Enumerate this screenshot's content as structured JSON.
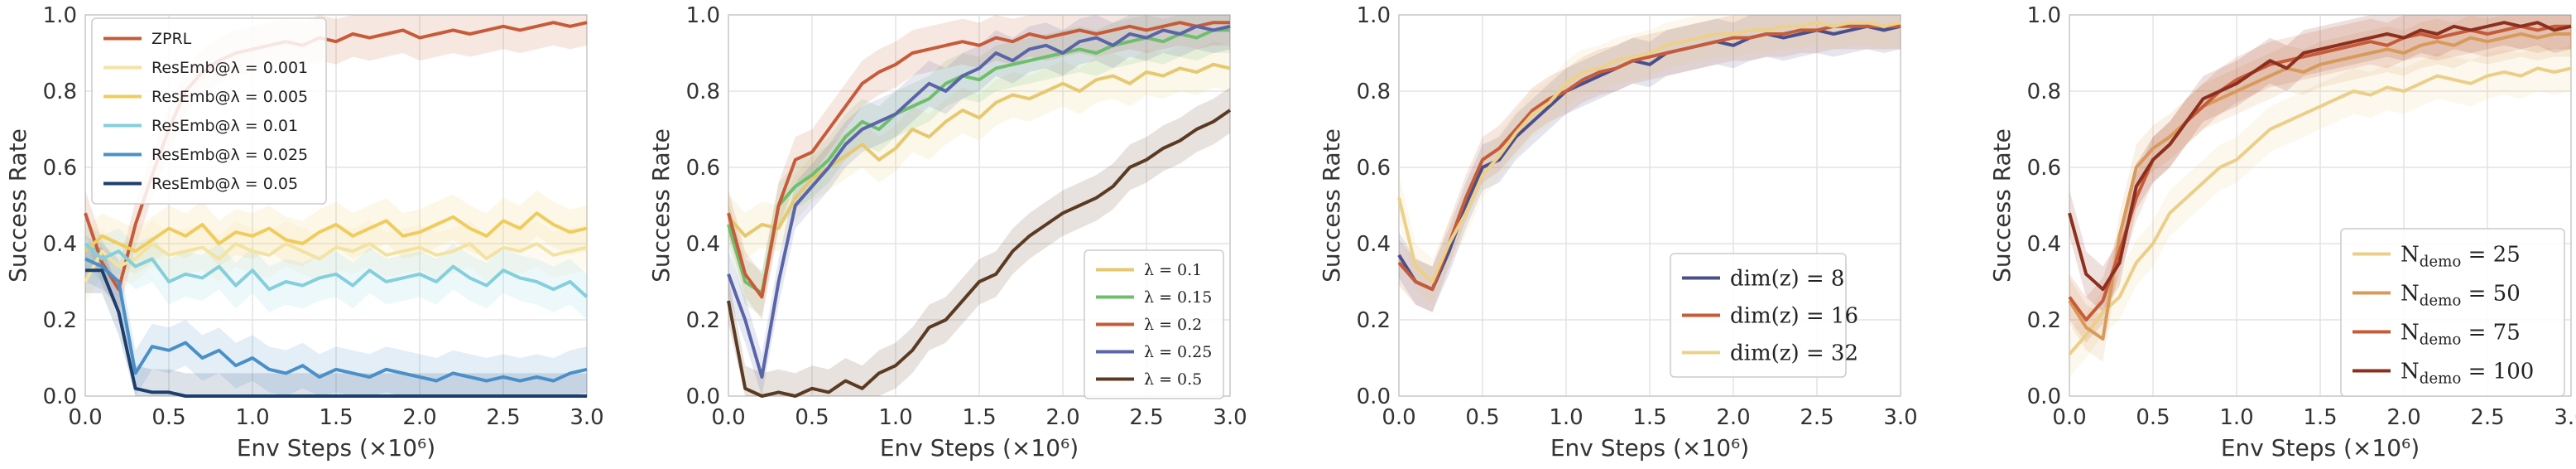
{
  "chart_data": [
    {
      "type": "line",
      "xlabel": "Env Steps (×10⁶)",
      "ylabel": "Success Rate",
      "xlim": [
        0,
        3.0
      ],
      "ylim": [
        0,
        1.0
      ],
      "xticks": [
        "0.0",
        "0.5",
        "1.0",
        "1.5",
        "2.0",
        "2.5",
        "3.0"
      ],
      "yticks": [
        "0.0",
        "0.2",
        "0.4",
        "0.6",
        "0.8",
        "1.0"
      ],
      "grid": true,
      "legend_position": "top-left",
      "x": [
        0,
        0.1,
        0.2,
        0.3,
        0.4,
        0.5,
        0.6,
        0.7,
        0.8,
        0.9,
        1.0,
        1.1,
        1.2,
        1.3,
        1.4,
        1.5,
        1.6,
        1.7,
        1.8,
        1.9,
        2.0,
        2.1,
        2.2,
        2.3,
        2.4,
        2.5,
        2.6,
        2.7,
        2.8,
        2.9,
        3.0
      ],
      "series": [
        {
          "name": "ZPRL",
          "color": "#c75b39",
          "values": [
            0.48,
            0.35,
            0.28,
            0.45,
            0.58,
            0.7,
            0.8,
            0.85,
            0.88,
            0.9,
            0.91,
            0.92,
            0.93,
            0.92,
            0.94,
            0.93,
            0.95,
            0.94,
            0.95,
            0.96,
            0.94,
            0.95,
            0.96,
            0.95,
            0.96,
            0.97,
            0.96,
            0.97,
            0.98,
            0.97,
            0.98
          ]
        },
        {
          "name": "ResEmb@λ = 0.001",
          "color": "#f3e3a3",
          "values": [
            0.3,
            0.38,
            0.34,
            0.36,
            0.4,
            0.37,
            0.38,
            0.39,
            0.36,
            0.4,
            0.38,
            0.37,
            0.4,
            0.38,
            0.36,
            0.39,
            0.38,
            0.4,
            0.37,
            0.38,
            0.39,
            0.37,
            0.38,
            0.4,
            0.36,
            0.39,
            0.38,
            0.4,
            0.37,
            0.38,
            0.39
          ]
        },
        {
          "name": "ResEmb@λ = 0.005",
          "color": "#f0cc5c",
          "values": [
            0.38,
            0.42,
            0.4,
            0.38,
            0.41,
            0.44,
            0.42,
            0.45,
            0.4,
            0.43,
            0.42,
            0.44,
            0.41,
            0.4,
            0.43,
            0.45,
            0.42,
            0.44,
            0.46,
            0.42,
            0.43,
            0.45,
            0.47,
            0.44,
            0.42,
            0.46,
            0.44,
            0.48,
            0.45,
            0.43,
            0.44
          ]
        },
        {
          "name": "ResEmb@λ = 0.01",
          "color": "#84cfdc",
          "values": [
            0.4,
            0.36,
            0.38,
            0.34,
            0.36,
            0.3,
            0.32,
            0.31,
            0.34,
            0.29,
            0.33,
            0.28,
            0.3,
            0.29,
            0.31,
            0.32,
            0.29,
            0.33,
            0.3,
            0.31,
            0.32,
            0.3,
            0.34,
            0.31,
            0.29,
            0.33,
            0.31,
            0.3,
            0.28,
            0.3,
            0.26
          ]
        },
        {
          "name": "ResEmb@λ = 0.025",
          "color": "#4a90c8",
          "values": [
            0.36,
            0.34,
            0.3,
            0.06,
            0.13,
            0.12,
            0.14,
            0.1,
            0.12,
            0.08,
            0.1,
            0.07,
            0.06,
            0.08,
            0.05,
            0.07,
            0.06,
            0.05,
            0.07,
            0.06,
            0.05,
            0.04,
            0.06,
            0.05,
            0.04,
            0.05,
            0.04,
            0.05,
            0.04,
            0.06,
            0.07
          ]
        },
        {
          "name": "ResEmb@λ = 0.05",
          "color": "#1c3f6e",
          "values": [
            0.33,
            0.33,
            0.22,
            0.02,
            0.01,
            0.01,
            0.0,
            0.0,
            0.0,
            0.0,
            0.0,
            0.0,
            0.0,
            0.0,
            0.0,
            0.0,
            0.0,
            0.0,
            0.0,
            0.0,
            0.0,
            0.0,
            0.0,
            0.0,
            0.0,
            0.0,
            0.0,
            0.0,
            0.0,
            0.0,
            0.0
          ]
        }
      ]
    },
    {
      "type": "line",
      "xlabel": "Env Steps (×10⁶)",
      "ylabel": "Success Rate",
      "xlim": [
        0,
        3.0
      ],
      "ylim": [
        0,
        1.0
      ],
      "xticks": [
        "0.0",
        "0.5",
        "1.0",
        "1.5",
        "2.0",
        "2.5",
        "3.0"
      ],
      "yticks": [
        "0.0",
        "0.2",
        "0.4",
        "0.6",
        "0.8",
        "1.0"
      ],
      "grid": true,
      "legend_position": "bottom-right",
      "x": [
        0,
        0.1,
        0.2,
        0.3,
        0.4,
        0.5,
        0.6,
        0.7,
        0.8,
        0.9,
        1.0,
        1.1,
        1.2,
        1.3,
        1.4,
        1.5,
        1.6,
        1.7,
        1.8,
        1.9,
        2.0,
        2.1,
        2.2,
        2.3,
        2.4,
        2.5,
        2.6,
        2.7,
        2.8,
        2.9,
        3.0
      ],
      "series": [
        {
          "name": "λ = 0.1",
          "color": "#e6c86e",
          "values": [
            0.47,
            0.42,
            0.45,
            0.44,
            0.52,
            0.57,
            0.6,
            0.63,
            0.66,
            0.62,
            0.65,
            0.7,
            0.68,
            0.72,
            0.75,
            0.73,
            0.77,
            0.79,
            0.78,
            0.8,
            0.82,
            0.8,
            0.83,
            0.84,
            0.82,
            0.85,
            0.84,
            0.86,
            0.85,
            0.87,
            0.86
          ]
        },
        {
          "name": "λ = 0.15",
          "color": "#6dbf6b",
          "values": [
            0.45,
            0.3,
            0.27,
            0.5,
            0.55,
            0.58,
            0.62,
            0.68,
            0.72,
            0.7,
            0.74,
            0.76,
            0.78,
            0.82,
            0.84,
            0.83,
            0.86,
            0.87,
            0.88,
            0.89,
            0.9,
            0.91,
            0.9,
            0.92,
            0.93,
            0.94,
            0.93,
            0.95,
            0.94,
            0.96,
            0.96
          ]
        },
        {
          "name": "λ = 0.2",
          "color": "#c75b39",
          "values": [
            0.48,
            0.32,
            0.26,
            0.5,
            0.62,
            0.64,
            0.7,
            0.76,
            0.82,
            0.85,
            0.87,
            0.9,
            0.91,
            0.92,
            0.93,
            0.92,
            0.94,
            0.93,
            0.95,
            0.94,
            0.95,
            0.96,
            0.95,
            0.96,
            0.97,
            0.96,
            0.97,
            0.98,
            0.97,
            0.98,
            0.98
          ]
        },
        {
          "name": "λ = 0.25",
          "color": "#5a64a8",
          "values": [
            0.32,
            0.2,
            0.05,
            0.3,
            0.5,
            0.55,
            0.6,
            0.66,
            0.7,
            0.72,
            0.74,
            0.78,
            0.82,
            0.8,
            0.84,
            0.86,
            0.9,
            0.88,
            0.91,
            0.92,
            0.9,
            0.93,
            0.94,
            0.92,
            0.95,
            0.94,
            0.96,
            0.95,
            0.97,
            0.96,
            0.97
          ]
        },
        {
          "name": "λ = 0.5",
          "color": "#5b3a22",
          "values": [
            0.25,
            0.02,
            0.0,
            0.01,
            0.0,
            0.02,
            0.01,
            0.04,
            0.02,
            0.06,
            0.08,
            0.12,
            0.18,
            0.2,
            0.25,
            0.3,
            0.32,
            0.38,
            0.42,
            0.45,
            0.48,
            0.5,
            0.52,
            0.55,
            0.6,
            0.62,
            0.65,
            0.67,
            0.7,
            0.72,
            0.75
          ]
        }
      ]
    },
    {
      "type": "line",
      "xlabel": "Env Steps (×10⁶)",
      "ylabel": "Success Rate",
      "xlim": [
        0,
        3.0
      ],
      "ylim": [
        0,
        1.0
      ],
      "xticks": [
        "0.0",
        "0.5",
        "1.0",
        "1.5",
        "2.0",
        "2.5",
        "3.0"
      ],
      "yticks": [
        "0.0",
        "0.2",
        "0.4",
        "0.6",
        "0.8",
        "1.0"
      ],
      "grid": true,
      "legend_position": "lower-left",
      "x": [
        0,
        0.1,
        0.2,
        0.3,
        0.4,
        0.5,
        0.6,
        0.7,
        0.8,
        0.9,
        1.0,
        1.1,
        1.2,
        1.3,
        1.4,
        1.5,
        1.6,
        1.7,
        1.8,
        1.9,
        2.0,
        2.1,
        2.2,
        2.3,
        2.4,
        2.5,
        2.6,
        2.7,
        2.8,
        2.9,
        3.0
      ],
      "series": [
        {
          "name": "dim(z) = 8",
          "color": "#4a4f8c",
          "values": [
            0.37,
            0.3,
            0.28,
            0.38,
            0.5,
            0.6,
            0.62,
            0.68,
            0.72,
            0.76,
            0.8,
            0.82,
            0.84,
            0.86,
            0.88,
            0.87,
            0.9,
            0.91,
            0.92,
            0.93,
            0.92,
            0.94,
            0.95,
            0.94,
            0.95,
            0.96,
            0.95,
            0.96,
            0.97,
            0.96,
            0.97
          ]
        },
        {
          "name": "dim(z) = 16",
          "color": "#c75b39",
          "values": [
            0.35,
            0.3,
            0.28,
            0.4,
            0.52,
            0.62,
            0.65,
            0.7,
            0.75,
            0.78,
            0.8,
            0.83,
            0.85,
            0.86,
            0.88,
            0.89,
            0.9,
            0.91,
            0.92,
            0.93,
            0.94,
            0.94,
            0.95,
            0.95,
            0.96,
            0.96,
            0.97,
            0.97,
            0.97,
            0.97,
            0.97
          ]
        },
        {
          "name": "dim(z) = 32",
          "color": "#ebd189",
          "values": [
            0.52,
            0.34,
            0.3,
            0.4,
            0.48,
            0.58,
            0.63,
            0.69,
            0.74,
            0.77,
            0.82,
            0.85,
            0.86,
            0.88,
            0.89,
            0.9,
            0.92,
            0.93,
            0.94,
            0.95,
            0.95,
            0.96,
            0.96,
            0.97,
            0.97,
            0.98,
            0.97,
            0.98,
            0.98,
            0.97,
            0.98
          ]
        }
      ]
    },
    {
      "type": "line",
      "xlabel": "Env Steps (×10⁶)",
      "ylabel": "Success Rate",
      "xlim": [
        0,
        3.0
      ],
      "ylim": [
        0,
        1.0
      ],
      "xticks": [
        "0.0",
        "0.5",
        "1.0",
        "1.5",
        "2.0",
        "2.5",
        "3.0"
      ],
      "yticks": [
        "0.0",
        "0.2",
        "0.4",
        "0.6",
        "0.8",
        "1.0"
      ],
      "grid": true,
      "legend_position": "bottom-right",
      "x": [
        0,
        0.1,
        0.2,
        0.3,
        0.4,
        0.5,
        0.6,
        0.7,
        0.8,
        0.9,
        1.0,
        1.1,
        1.2,
        1.3,
        1.4,
        1.5,
        1.6,
        1.7,
        1.8,
        1.9,
        2.0,
        2.1,
        2.2,
        2.3,
        2.4,
        2.5,
        2.6,
        2.7,
        2.8,
        2.9,
        3.0
      ],
      "series": [
        {
          "name": "Ndemo = 25",
          "color": "#ebcf88",
          "values": [
            0.11,
            0.16,
            0.22,
            0.26,
            0.35,
            0.4,
            0.48,
            0.52,
            0.56,
            0.6,
            0.62,
            0.66,
            0.7,
            0.72,
            0.74,
            0.76,
            0.78,
            0.8,
            0.79,
            0.81,
            0.8,
            0.82,
            0.84,
            0.83,
            0.82,
            0.84,
            0.85,
            0.84,
            0.86,
            0.85,
            0.86
          ]
        },
        {
          "name": "Ndemo = 50",
          "color": "#d89a5a",
          "values": [
            0.25,
            0.18,
            0.15,
            0.42,
            0.6,
            0.65,
            0.68,
            0.72,
            0.76,
            0.78,
            0.8,
            0.82,
            0.84,
            0.86,
            0.85,
            0.87,
            0.88,
            0.89,
            0.9,
            0.91,
            0.9,
            0.92,
            0.93,
            0.92,
            0.94,
            0.93,
            0.94,
            0.95,
            0.94,
            0.95,
            0.95
          ]
        },
        {
          "name": "Ndemo = 75",
          "color": "#c75b39",
          "values": [
            0.26,
            0.2,
            0.25,
            0.38,
            0.52,
            0.62,
            0.66,
            0.72,
            0.76,
            0.8,
            0.83,
            0.85,
            0.87,
            0.88,
            0.89,
            0.9,
            0.91,
            0.92,
            0.93,
            0.92,
            0.94,
            0.95,
            0.94,
            0.95,
            0.96,
            0.95,
            0.96,
            0.97,
            0.96,
            0.97,
            0.97
          ]
        },
        {
          "name": "Ndemo = 100",
          "color": "#8c2f1e",
          "values": [
            0.48,
            0.32,
            0.28,
            0.35,
            0.55,
            0.62,
            0.66,
            0.72,
            0.78,
            0.8,
            0.82,
            0.85,
            0.88,
            0.86,
            0.9,
            0.91,
            0.92,
            0.93,
            0.94,
            0.95,
            0.94,
            0.96,
            0.95,
            0.97,
            0.96,
            0.97,
            0.98,
            0.97,
            0.98,
            0.96,
            0.97
          ]
        }
      ]
    }
  ]
}
